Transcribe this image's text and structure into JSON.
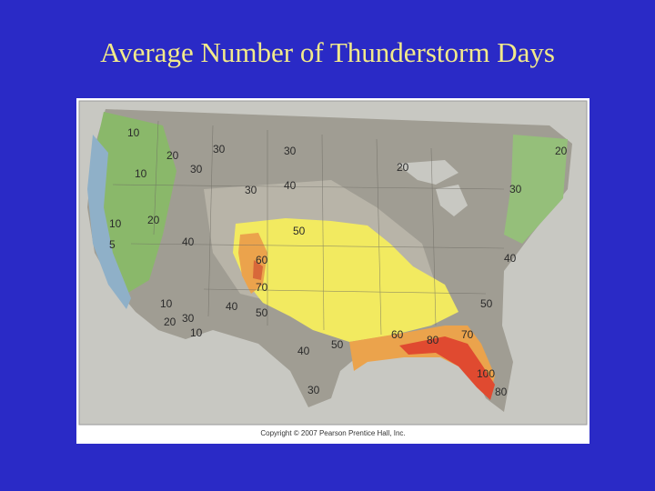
{
  "title": "Average Number of Thunderstorm Days",
  "credit": "Copyright © 2007 Pearson Prentice Hall, Inc.",
  "colors": {
    "background": "#2a2ac6",
    "title": "#f2ea8a",
    "ocean": "#c8c8c2",
    "land_gray": "#9a9890",
    "land_light": "#c3c0b4",
    "green": "#8ab86a",
    "blue": "#8fb0c8",
    "yellow": "#f2ea60",
    "orange": "#eba34c",
    "red": "#e04a30"
  },
  "labels": [
    {
      "text": "10"
    },
    {
      "text": "20"
    },
    {
      "text": "10"
    },
    {
      "text": "30"
    },
    {
      "text": "30"
    },
    {
      "text": "20"
    },
    {
      "text": "10"
    },
    {
      "text": "5"
    },
    {
      "text": "30"
    },
    {
      "text": "40"
    },
    {
      "text": "30"
    },
    {
      "text": "20"
    },
    {
      "text": "50"
    },
    {
      "text": "40"
    },
    {
      "text": "60"
    },
    {
      "text": "70"
    },
    {
      "text": "40"
    },
    {
      "text": "50"
    },
    {
      "text": "10"
    },
    {
      "text": "20"
    },
    {
      "text": "30"
    },
    {
      "text": "10"
    },
    {
      "text": "40"
    },
    {
      "text": "50"
    },
    {
      "text": "60"
    },
    {
      "text": "80"
    },
    {
      "text": "70"
    },
    {
      "text": "40"
    },
    {
      "text": "50"
    },
    {
      "text": "30"
    },
    {
      "text": "100"
    },
    {
      "text": "80"
    }
  ]
}
